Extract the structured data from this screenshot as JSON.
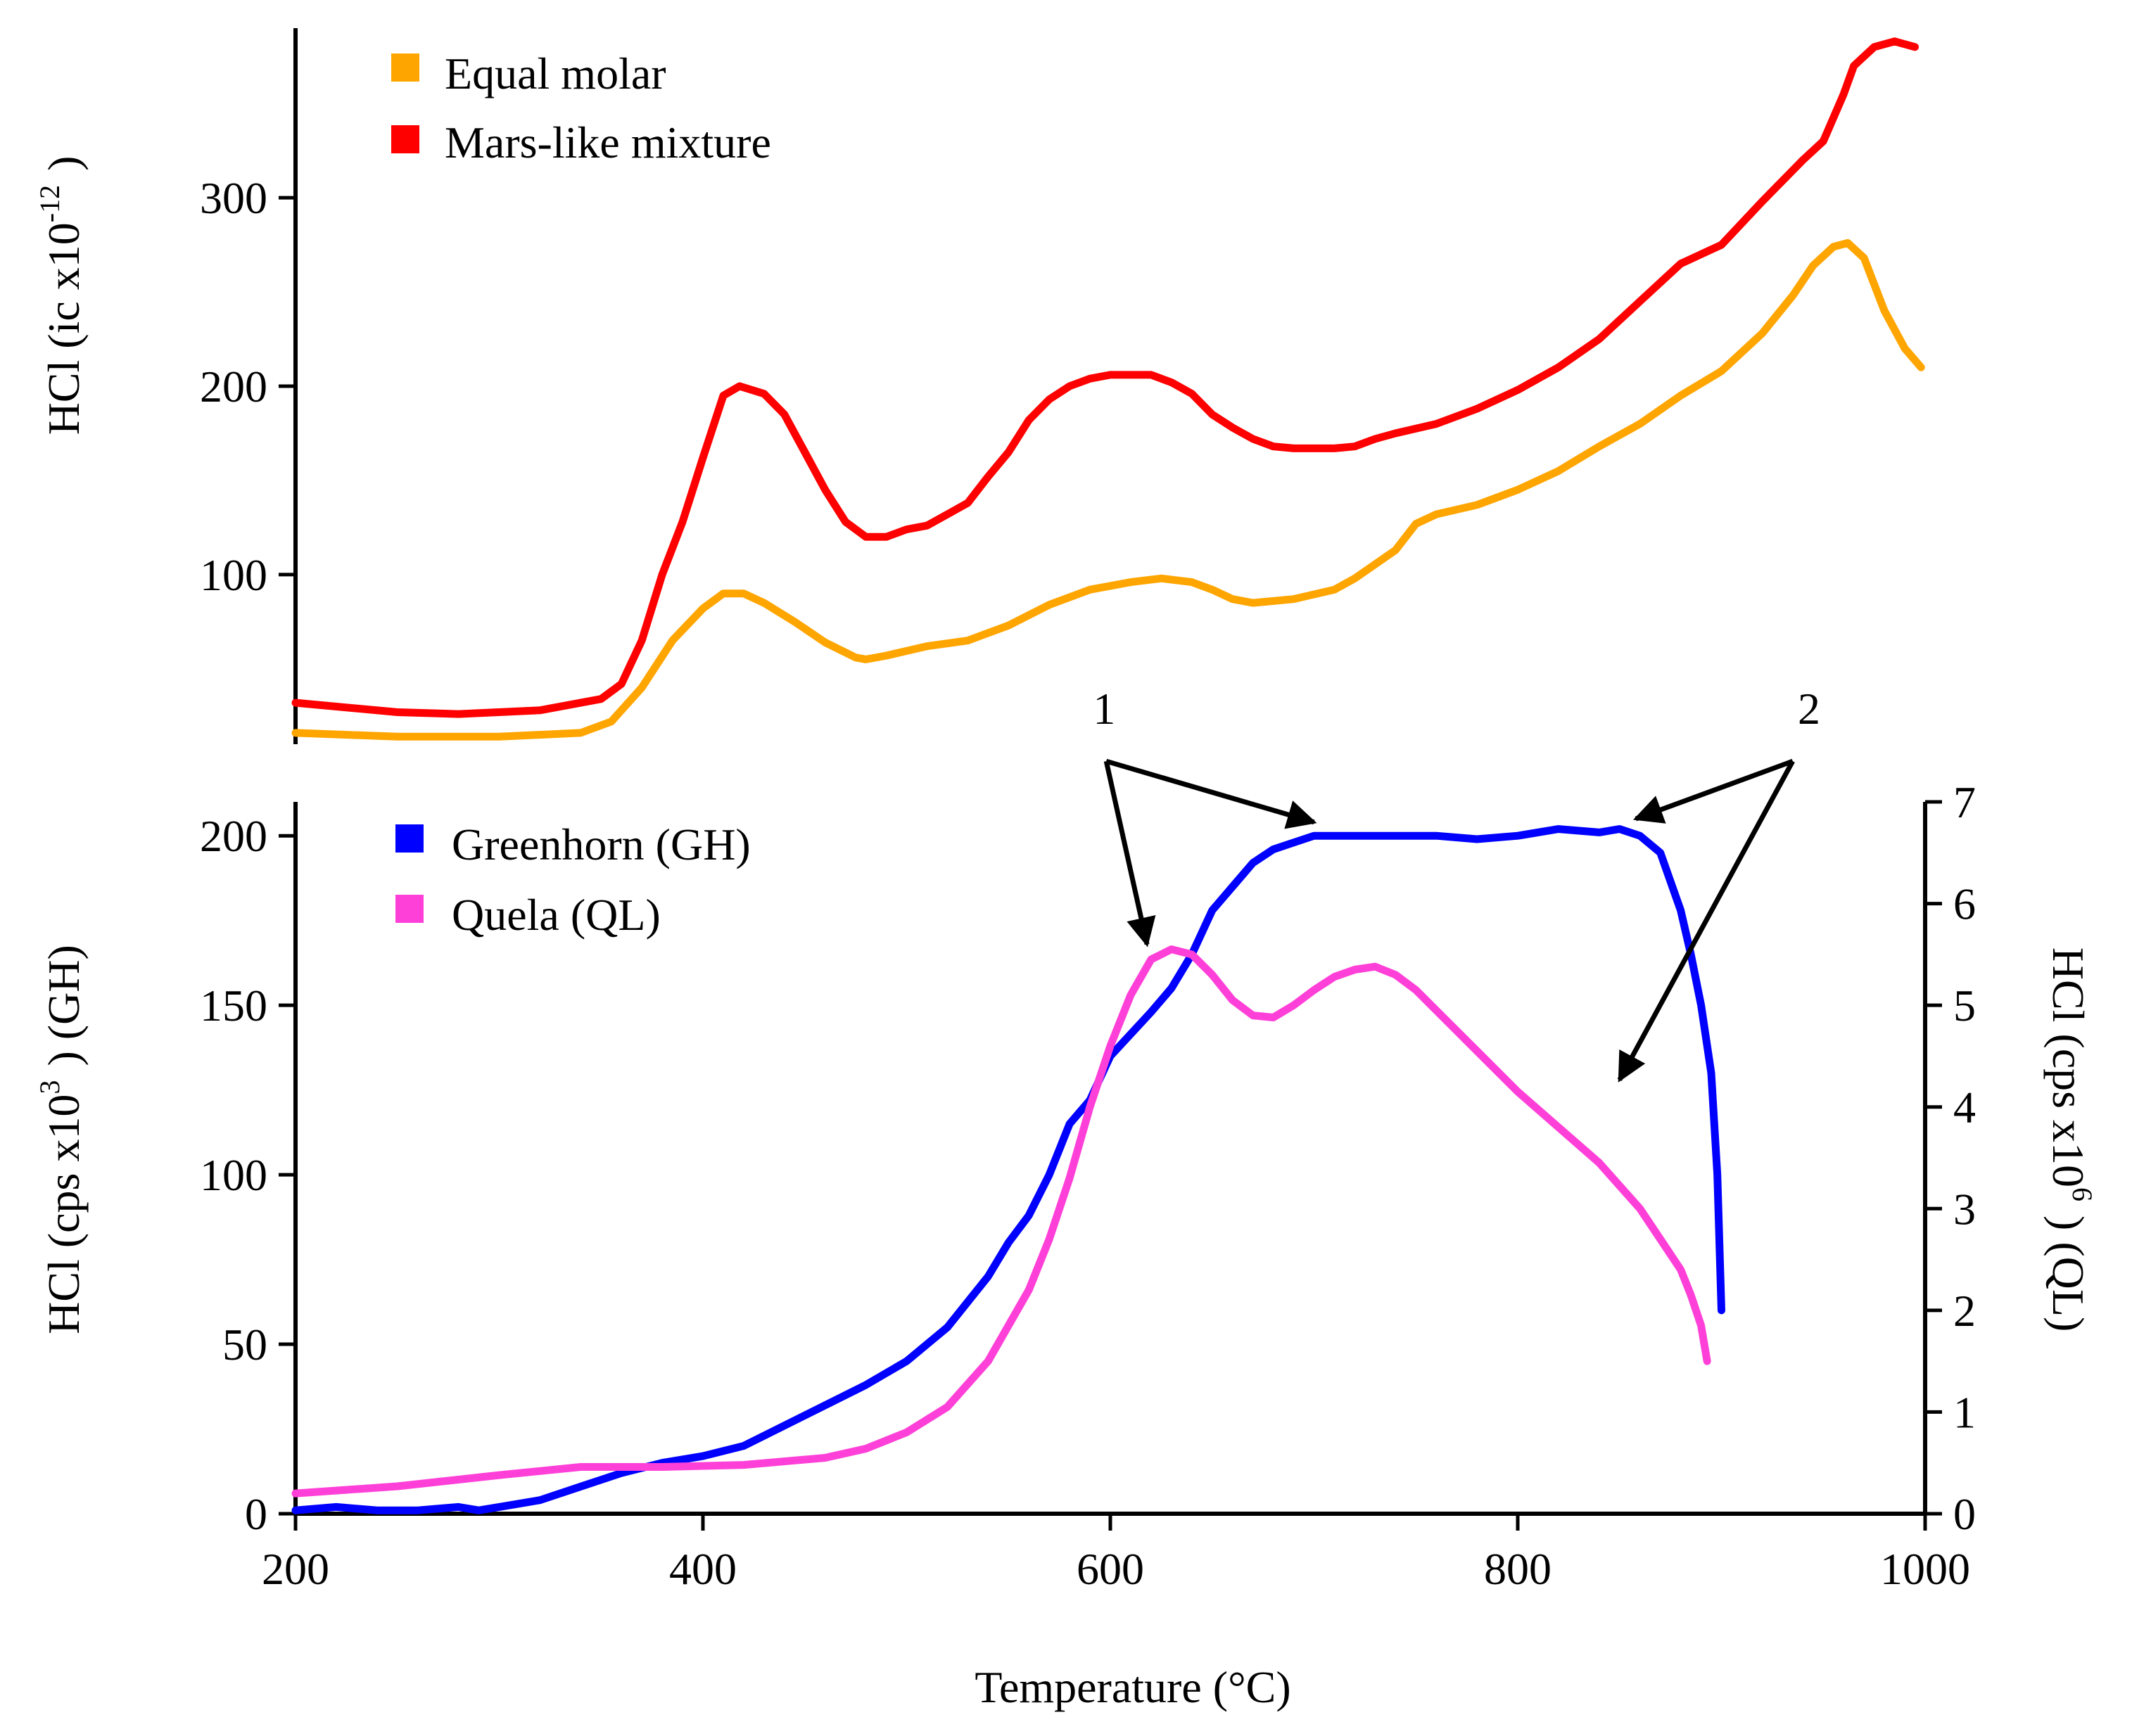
{
  "chart_data": [
    {
      "type": "line",
      "panel": "top",
      "ylabel": {
        "main": "HCl (ic x10",
        "exp": "-12",
        "close": ")"
      },
      "xlim": [
        200,
        1000
      ],
      "ylim": [
        10,
        390
      ],
      "yticks": [
        100,
        200,
        300
      ],
      "ytick_labels": [
        "100",
        "200",
        "300"
      ],
      "legend_position": "top-left",
      "series": [
        {
          "name": "Equal molar",
          "color": "#FFA500",
          "x": [
            200,
            250,
            300,
            340,
            355,
            370,
            385,
            400,
            410,
            420,
            430,
            445,
            460,
            475,
            480,
            490,
            510,
            530,
            550,
            570,
            590,
            610,
            625,
            640,
            650,
            660,
            670,
            690,
            710,
            720,
            740,
            750,
            760,
            780,
            800,
            820,
            840,
            860,
            880,
            900,
            920,
            935,
            945,
            955,
            962,
            970,
            980,
            990,
            998
          ],
          "y": [
            16,
            14,
            14,
            16,
            22,
            40,
            65,
            82,
            90,
            90,
            85,
            75,
            64,
            56,
            55,
            57,
            62,
            65,
            73,
            84,
            92,
            96,
            98,
            96,
            92,
            87,
            85,
            87,
            92,
            98,
            113,
            127,
            132,
            137,
            145,
            155,
            168,
            180,
            195,
            208,
            228,
            248,
            264,
            274,
            276,
            268,
            240,
            220,
            210
          ]
        },
        {
          "name": "Mars-like mixture",
          "color": "#FF0000",
          "x": [
            200,
            250,
            280,
            320,
            350,
            360,
            370,
            380,
            390,
            400,
            410,
            418,
            430,
            440,
            450,
            460,
            470,
            480,
            490,
            500,
            510,
            520,
            530,
            540,
            550,
            560,
            570,
            580,
            590,
            600,
            610,
            620,
            630,
            640,
            650,
            660,
            670,
            680,
            690,
            700,
            710,
            720,
            730,
            740,
            760,
            780,
            800,
            820,
            840,
            860,
            880,
            900,
            920,
            940,
            950,
            960,
            965,
            975,
            985,
            995
          ],
          "y": [
            32,
            27,
            26,
            28,
            34,
            42,
            65,
            100,
            128,
            162,
            195,
            200,
            196,
            185,
            165,
            145,
            128,
            120,
            120,
            124,
            126,
            132,
            138,
            152,
            165,
            182,
            193,
            200,
            204,
            206,
            206,
            206,
            202,
            196,
            185,
            178,
            172,
            168,
            167,
            167,
            167,
            168,
            172,
            175,
            180,
            188,
            198,
            210,
            225,
            245,
            265,
            275,
            298,
            320,
            330,
            355,
            370,
            380,
            383,
            380
          ]
        }
      ]
    },
    {
      "type": "line",
      "panel": "bottom",
      "xlabel": "Temperature (°C)",
      "xlim": [
        200,
        1000
      ],
      "xticks": [
        200,
        400,
        600,
        800,
        1000
      ],
      "xtick_labels": [
        "200",
        "400",
        "600",
        "800",
        "1000"
      ],
      "ylabel_left": {
        "main": "HCl (cps x10",
        "exp": "3",
        "close": ") (GH)"
      },
      "ylabel_right": {
        "main": "HCl (cps x10",
        "exp": "6",
        "close": ") (QL)"
      },
      "ylim_left": [
        0,
        210
      ],
      "yticks_left": [
        0,
        50,
        100,
        150,
        200
      ],
      "ytick_labels_left": [
        "0",
        "50",
        "100",
        "150",
        "200"
      ],
      "ylim_right": [
        0,
        7
      ],
      "yticks_right": [
        0,
        1,
        2,
        3,
        4,
        5,
        6,
        7
      ],
      "ytick_labels_right": [
        "0",
        "1",
        "2",
        "3",
        "4",
        "5",
        "6",
        "7"
      ],
      "legend_position": "top-left",
      "series": [
        {
          "name": "Greenhorn (GH)",
          "axis": "left",
          "color": "#0000FF",
          "x": [
            200,
            220,
            240,
            260,
            280,
            290,
            300,
            320,
            340,
            360,
            380,
            400,
            420,
            440,
            460,
            480,
            500,
            520,
            540,
            550,
            560,
            570,
            580,
            590,
            600,
            620,
            630,
            640,
            650,
            660,
            670,
            680,
            690,
            700,
            720,
            740,
            760,
            780,
            800,
            820,
            840,
            850,
            860,
            870,
            880,
            885,
            890,
            895,
            898,
            900
          ],
          "y": [
            1,
            2,
            1,
            1,
            2,
            1,
            2,
            4,
            8,
            12,
            15,
            17,
            20,
            26,
            32,
            38,
            45,
            55,
            70,
            80,
            88,
            100,
            115,
            122,
            135,
            148,
            155,
            165,
            178,
            185,
            192,
            196,
            198,
            200,
            200,
            200,
            200,
            199,
            200,
            202,
            201,
            202,
            200,
            195,
            178,
            165,
            150,
            130,
            100,
            60
          ]
        },
        {
          "name": "Quela (QL)",
          "axis": "right",
          "color": "#FF40D8",
          "x": [
            200,
            250,
            300,
            340,
            380,
            420,
            460,
            480,
            500,
            520,
            540,
            560,
            570,
            580,
            590,
            600,
            610,
            620,
            630,
            640,
            650,
            660,
            670,
            680,
            690,
            700,
            710,
            720,
            730,
            740,
            750,
            760,
            780,
            800,
            820,
            840,
            860,
            870,
            880,
            885,
            890,
            893
          ],
          "y": [
            0.2,
            0.27,
            0.38,
            0.46,
            0.46,
            0.48,
            0.55,
            0.64,
            0.8,
            1.05,
            1.5,
            2.2,
            2.7,
            3.3,
            4.0,
            4.6,
            5.1,
            5.45,
            5.55,
            5.5,
            5.3,
            5.05,
            4.9,
            4.88,
            5.0,
            5.15,
            5.28,
            5.35,
            5.38,
            5.3,
            5.15,
            4.95,
            4.55,
            4.15,
            3.8,
            3.45,
            3.0,
            2.7,
            2.4,
            2.15,
            1.85,
            1.5
          ]
        }
      ],
      "annotations": [
        {
          "label": "1",
          "label_at": {
            "x": 597,
            "y": 233
          },
          "arrow_from": {
            "x": 598,
            "y": 222
          },
          "targets": [
            {
              "x": 700,
              "y": 204
            },
            {
              "x": 618,
              "y": 168
            }
          ]
        },
        {
          "label": "2",
          "label_at": {
            "x": 943,
            "y": 233
          },
          "arrow_from": {
            "x": 935,
            "y": 222
          },
          "targets": [
            {
              "x": 858,
              "y": 205
            },
            {
              "x": 850,
              "y": 128
            }
          ]
        }
      ]
    }
  ]
}
